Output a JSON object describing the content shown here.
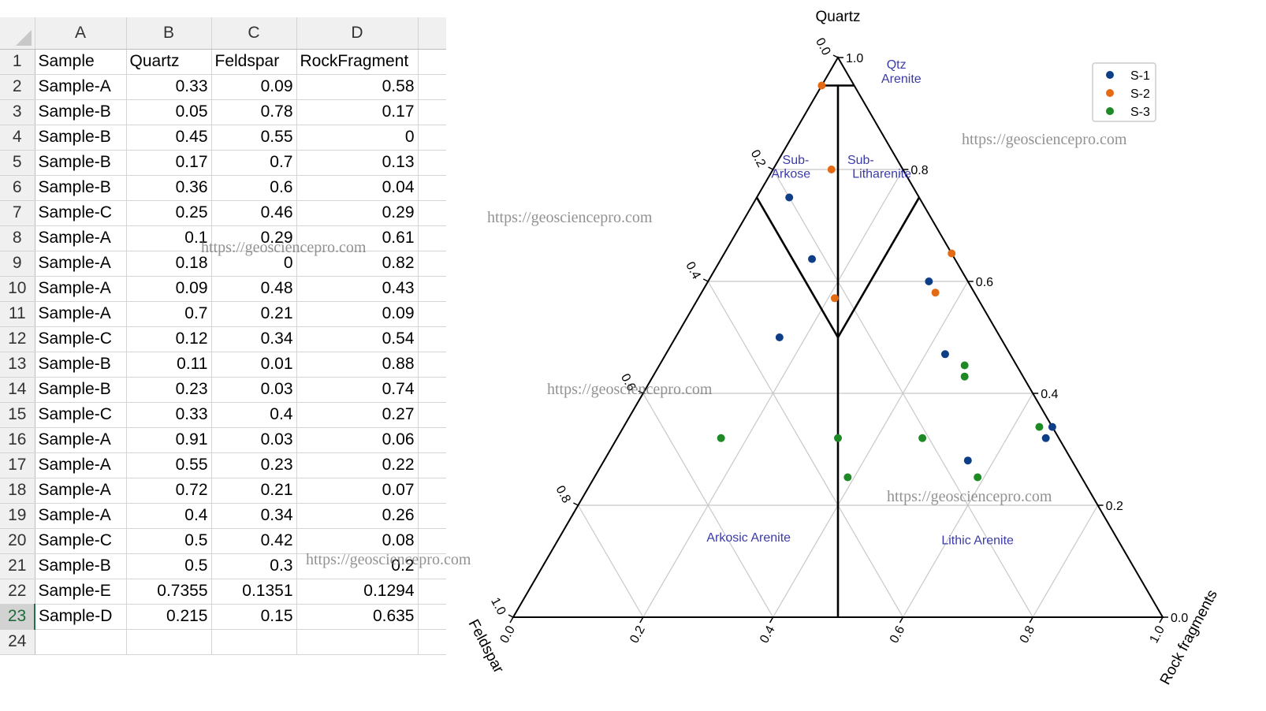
{
  "spreadsheet": {
    "column_headers": [
      "A",
      "B",
      "C",
      "D"
    ],
    "row_numbers": [
      "1",
      "2",
      "3",
      "4",
      "5",
      "6",
      "7",
      "8",
      "9",
      "10",
      "11",
      "12",
      "13",
      "14",
      "15",
      "16",
      "17",
      "18",
      "19",
      "20",
      "21",
      "22",
      "23",
      "24"
    ],
    "header_row": [
      "Sample",
      "Quartz",
      "Feldspar",
      "RockFragment"
    ],
    "rows": [
      [
        "Sample-A",
        "0.33",
        "0.09",
        "0.58"
      ],
      [
        "Sample-B",
        "0.05",
        "0.78",
        "0.17"
      ],
      [
        "Sample-B",
        "0.45",
        "0.55",
        "0"
      ],
      [
        "Sample-B",
        "0.17",
        "0.7",
        "0.13"
      ],
      [
        "Sample-B",
        "0.36",
        "0.6",
        "0.04"
      ],
      [
        "Sample-C",
        "0.25",
        "0.46",
        "0.29"
      ],
      [
        "Sample-A",
        "0.1",
        "0.29",
        "0.61"
      ],
      [
        "Sample-A",
        "0.18",
        "0",
        "0.82"
      ],
      [
        "Sample-A",
        "0.09",
        "0.48",
        "0.43"
      ],
      [
        "Sample-A",
        "0.7",
        "0.21",
        "0.09"
      ],
      [
        "Sample-C",
        "0.12",
        "0.34",
        "0.54"
      ],
      [
        "Sample-B",
        "0.11",
        "0.01",
        "0.88"
      ],
      [
        "Sample-B",
        "0.23",
        "0.03",
        "0.74"
      ],
      [
        "Sample-C",
        "0.33",
        "0.4",
        "0.27"
      ],
      [
        "Sample-A",
        "0.91",
        "0.03",
        "0.06"
      ],
      [
        "Sample-A",
        "0.55",
        "0.23",
        "0.22"
      ],
      [
        "Sample-A",
        "0.72",
        "0.21",
        "0.07"
      ],
      [
        "Sample-A",
        "0.4",
        "0.34",
        "0.26"
      ],
      [
        "Sample-C",
        "0.5",
        "0.42",
        "0.08"
      ],
      [
        "Sample-B",
        "0.5",
        "0.3",
        "0.2"
      ],
      [
        "Sample-E",
        "0.7355",
        "0.1351",
        "0.1294"
      ],
      [
        "Sample-D",
        "0.215",
        "0.15",
        "0.635"
      ]
    ],
    "active_row": "23"
  },
  "watermark": "https://geosciencepro.com",
  "chart_data": {
    "type": "ternary-scatter",
    "apex_labels": {
      "top": "Quartz",
      "left": "Feldspar",
      "right": "Rock fragments"
    },
    "right_edge_ticks": [
      "0.0",
      "0.2",
      "0.4",
      "0.6",
      "0.8",
      "1.0"
    ],
    "left_edge_ticks": [
      "0.0",
      "0.2",
      "0.4",
      "0.6",
      "0.8",
      "1.0"
    ],
    "bottom_edge_ticks": [
      "0.0",
      "0.2",
      "0.4",
      "0.6",
      "0.8",
      "1.0"
    ],
    "grid_step": 0.2,
    "classification_lines": [
      {
        "from": {
          "q": 0.95,
          "f": 0.05,
          "r": 0.0
        },
        "to": {
          "q": 0.95,
          "f": 0.0,
          "r": 0.05
        }
      },
      {
        "from": {
          "q": 0.75,
          "f": 0.25,
          "r": 0.0
        },
        "to": {
          "q": 0.5,
          "f": 0.25,
          "r": 0.25
        }
      },
      {
        "from": {
          "q": 0.75,
          "f": 0.0,
          "r": 0.25
        },
        "to": {
          "q": 0.5,
          "f": 0.25,
          "r": 0.25
        }
      },
      {
        "from": {
          "q": 0.95,
          "f": 0.025,
          "r": 0.025
        },
        "to": {
          "q": 0.0,
          "f": 0.5,
          "r": 0.5
        }
      }
    ],
    "field_labels": [
      {
        "text": "Qtz",
        "q": 0.98,
        "f": -0.08,
        "r": 0.1
      },
      {
        "text": "Arenite",
        "q": 0.955,
        "f": -0.075,
        "r": 0.12
      },
      {
        "text": "Sub-",
        "q": 0.81,
        "f": 0.16,
        "r": 0.03
      },
      {
        "text": "Arkose",
        "q": 0.785,
        "f": 0.18,
        "r": 0.035
      },
      {
        "text": "Sub-",
        "q": 0.81,
        "f": 0.06,
        "r": 0.13
      },
      {
        "text": "Litharenite",
        "q": 0.785,
        "f": 0.04,
        "r": 0.175
      },
      {
        "text": "Arkosic Arenite",
        "q": 0.135,
        "f": 0.57,
        "r": 0.295
      },
      {
        "text": "Lithic Arenite",
        "q": 0.13,
        "f": 0.22,
        "r": 0.65
      }
    ],
    "series": [
      {
        "name": "S-1",
        "color": "#0e3f86",
        "points": [
          {
            "q": 0.75,
            "f": 0.2,
            "r": 0.05
          },
          {
            "q": 0.64,
            "f": 0.22,
            "r": 0.14
          },
          {
            "q": 0.6,
            "f": 0.06,
            "r": 0.34
          },
          {
            "q": 0.5,
            "f": 0.34,
            "r": 0.16
          },
          {
            "q": 0.47,
            "f": 0.1,
            "r": 0.43
          },
          {
            "q": 0.34,
            "f": 0.0,
            "r": 0.66
          },
          {
            "q": 0.32,
            "f": 0.02,
            "r": 0.66
          },
          {
            "q": 0.28,
            "f": 0.16,
            "r": 0.56
          }
        ]
      },
      {
        "name": "S-2",
        "color": "#e46a14",
        "points": [
          {
            "q": 0.95,
            "f": 0.05,
            "r": 0.0
          },
          {
            "q": 0.8,
            "f": 0.11,
            "r": 0.09
          },
          {
            "q": 0.65,
            "f": 0.0,
            "r": 0.35
          },
          {
            "q": 0.58,
            "f": 0.06,
            "r": 0.36
          },
          {
            "q": 0.57,
            "f": 0.22,
            "r": 0.21
          }
        ]
      },
      {
        "name": "S-3",
        "color": "#1d8a25",
        "points": [
          {
            "q": 0.45,
            "f": 0.08,
            "r": 0.47
          },
          {
            "q": 0.43,
            "f": 0.09,
            "r": 0.48
          },
          {
            "q": 0.34,
            "f": 0.02,
            "r": 0.64
          },
          {
            "q": 0.32,
            "f": 0.21,
            "r": 0.47
          },
          {
            "q": 0.32,
            "f": 0.34,
            "r": 0.34
          },
          {
            "q": 0.32,
            "f": 0.52,
            "r": 0.16
          },
          {
            "q": 0.25,
            "f": 0.16,
            "r": 0.59
          },
          {
            "q": 0.25,
            "f": 0.36,
            "r": 0.39
          }
        ]
      }
    ],
    "legend": {
      "position": "top-right",
      "entries": [
        "S-1",
        "S-2",
        "S-3"
      ]
    },
    "colors": {
      "grid": "#c8c8c8",
      "frame": "#000000",
      "field_label": "#3b3ba8"
    }
  }
}
